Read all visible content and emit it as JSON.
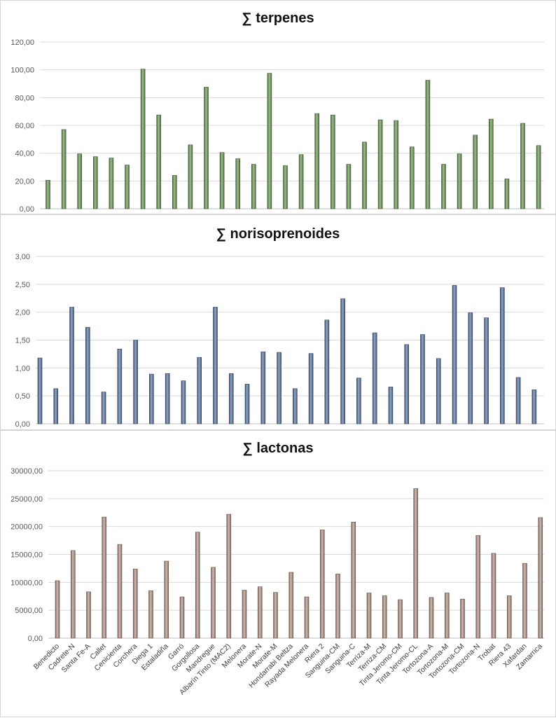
{
  "chart_data": [
    {
      "type": "bar",
      "title": "∑  terpenes",
      "ylim": [
        0,
        120
      ],
      "yticks": [
        "0,00",
        "20,00",
        "40,00",
        "60,00",
        "80,00",
        "100,00",
        "120,00"
      ],
      "grid": true,
      "color": "#6f9c58",
      "categories": [
        "Benedicto",
        "Cadrete-N",
        "Santa Fe-A",
        "Callet",
        "Cenicienta",
        "Corchera",
        "Diega 1",
        "Estaladiña",
        "Garró",
        "Gorgollosa",
        "Mandregue",
        "Albarín Tinto (MAC2)",
        "Melonera",
        "Morate-N",
        "Morate-M",
        "Hondarrabi Beltza",
        "Rayada Melonera",
        "Riera 2",
        "Sanguina-CM",
        "Sanguina-C",
        "Terriza-M",
        "Terriza-CM",
        "Tinta Jeromo-CM",
        "Tinta Jeromo-CL",
        "Tortozona-A",
        "Tortozona-M",
        "Tortozona-CM",
        "Tortozona-N",
        "Trobat",
        "Riera 43",
        "Xafardan",
        "Zamarrica"
      ],
      "values": [
        20.5,
        57,
        39.5,
        37.5,
        36.5,
        31.5,
        100.5,
        67.5,
        24,
        46,
        87.5,
        40.5,
        36,
        32,
        97.5,
        31,
        39,
        68.5,
        67.5,
        32,
        48,
        64,
        63.5,
        44.5,
        92.5,
        32,
        39.5,
        53,
        64.5,
        21.5,
        61.5,
        45.5
      ]
    },
    {
      "type": "bar",
      "title": "∑ norisoprenoides",
      "ylim": [
        0,
        3
      ],
      "yticks": [
        "0,00",
        "0,50",
        "1,00",
        "1,50",
        "2,00",
        "2,50",
        "3,00"
      ],
      "grid": true,
      "color": "#5b78a8",
      "categories": [
        "Benedicto",
        "Cadrete-N",
        "Santa Fe-A",
        "Callet",
        "Cenicienta",
        "Corchera",
        "Diega 1",
        "Estaladiña",
        "Garró",
        "Gorgollosa",
        "Mandregue",
        "Albarín Tinto (MAC2)",
        "Melonera",
        "Morate-N",
        "Morate-M",
        "Hondarrabi Beltza",
        "Rayada Melonera",
        "Riera 2",
        "Sanguina-CM",
        "Sanguina-C",
        "Terriza-M",
        "Terriza-CM",
        "Tinta Jeromo-CM",
        "Tinta Jeromo-CL",
        "Tortozona-A",
        "Tortozona-M",
        "Tortozona-CM",
        "Tortozona-N",
        "Trobat",
        "Riera 43",
        "Xafardan",
        "Zamarrica"
      ],
      "values": [
        1.18,
        0.63,
        2.09,
        1.73,
        0.57,
        1.34,
        1.5,
        0.89,
        0.9,
        0.77,
        1.19,
        2.09,
        0.9,
        0.71,
        1.29,
        1.28,
        0.63,
        1.26,
        1.86,
        2.24,
        0.82,
        1.63,
        0.66,
        1.42,
        1.6,
        1.17,
        2.48,
        1.99,
        1.9,
        2.44,
        0.83,
        0.61
      ]
    },
    {
      "type": "bar",
      "title": "∑ lactonas",
      "ylim": [
        0,
        30000
      ],
      "yticks": [
        "0,00",
        "5000,00",
        "10000,00",
        "15000,00",
        "20000,00",
        "25000,00",
        "30000,00"
      ],
      "grid": true,
      "color": "#b8998a",
      "categories": [
        "Benedicto",
        "Cadrete-N",
        "Santa Fe-A",
        "Callet",
        "Cenicienta",
        "Corchera",
        "Diega 1",
        "Estaladiña",
        "Garró",
        "Gorgollosa",
        "Mandregue",
        "Albarín Tinto (MAC2)",
        "Melonera",
        "Morate-N",
        "Morate-M",
        "Hondarrabi Beltza",
        "Rayada Melonera",
        "Riera 2",
        "Sanguina-CM",
        "Sanguina-C",
        "Terriza-M",
        "Terriza-CM",
        "Tinta Jeromo-CM",
        "Tinta Jeromo-CL",
        "Tortozona-A",
        "Tortozona-M",
        "Tortozona-CM",
        "Tortozona-N",
        "Trobat",
        "Riera 43",
        "Xafardan",
        "Zamarrica"
      ],
      "values": [
        10300,
        15700,
        8300,
        21700,
        16800,
        12400,
        8500,
        13800,
        7400,
        19000,
        12700,
        22200,
        8600,
        9200,
        8200,
        11800,
        7400,
        19400,
        11500,
        20800,
        8100,
        7600,
        6900,
        26800,
        7300,
        8100,
        7000,
        18400,
        15200,
        7600,
        13400,
        21600
      ]
    }
  ]
}
